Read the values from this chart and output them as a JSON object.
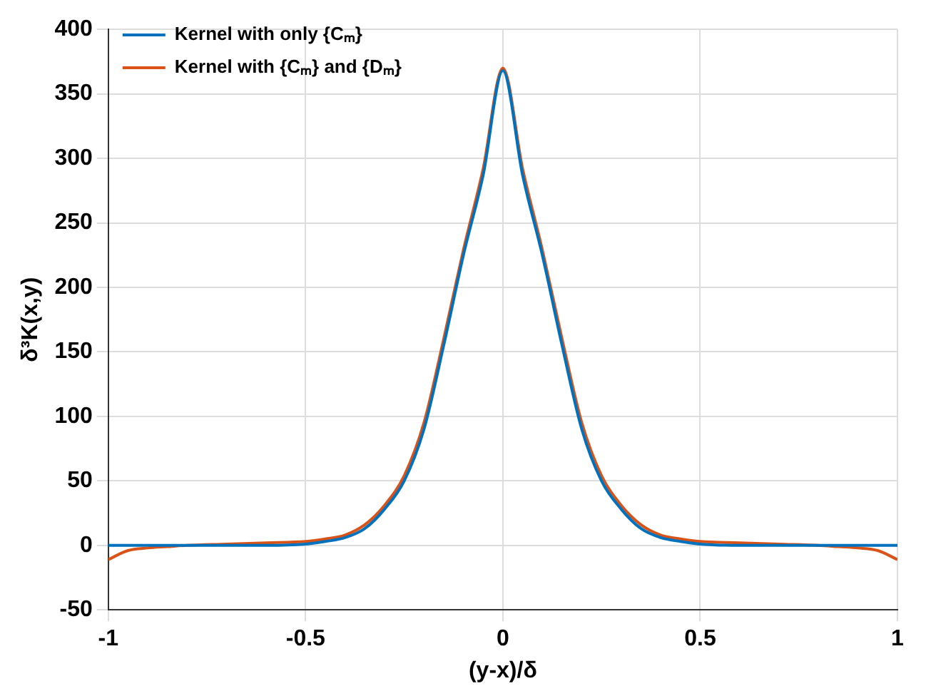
{
  "chart_data": {
    "type": "line",
    "xlabel": "(y-x)/δ",
    "ylabel": "δ³K(x,y)",
    "x": [
      -1,
      -0.95,
      -0.9,
      -0.85,
      -0.8,
      -0.7,
      -0.6,
      -0.5,
      -0.45,
      -0.4,
      -0.35,
      -0.3,
      -0.25,
      -0.2,
      -0.15,
      -0.1,
      -0.05,
      0,
      0.05,
      0.1,
      0.15,
      0.2,
      0.25,
      0.3,
      0.35,
      0.4,
      0.45,
      0.5,
      0.6,
      0.7,
      0.8,
      0.85,
      0.9,
      0.95,
      1
    ],
    "series": [
      {
        "name": "Kernel with only {Cₘ}",
        "color": "#0072bd",
        "values": [
          0,
          0,
          0,
          0,
          0,
          0,
          0,
          1,
          3,
          6,
          13,
          28,
          50,
          90,
          155,
          225,
          287,
          368,
          287,
          225,
          155,
          90,
          50,
          28,
          13,
          6,
          3,
          1,
          0,
          0,
          0,
          0,
          0,
          0,
          0
        ]
      },
      {
        "name": "Kernel with {Cₘ} and {Dₘ}",
        "color": "#d95319",
        "values": [
          -11,
          -4,
          -2,
          -1,
          0,
          1,
          2,
          3,
          5,
          8,
          16,
          31,
          54,
          95,
          160,
          229,
          292,
          370,
          292,
          229,
          160,
          95,
          54,
          31,
          16,
          8,
          5,
          3,
          2,
          1,
          0,
          -1,
          -2,
          -4,
          -11
        ]
      }
    ],
    "xlim": [
      -1,
      1
    ],
    "xticks": [
      -1,
      -0.5,
      0,
      0.5,
      1
    ],
    "ylim": [
      -50,
      400
    ],
    "yticks": [
      -50,
      0,
      50,
      100,
      150,
      200,
      250,
      300,
      350,
      400
    ],
    "grid": true,
    "legend": "top left",
    "marker": "none",
    "line_style": "solid"
  }
}
